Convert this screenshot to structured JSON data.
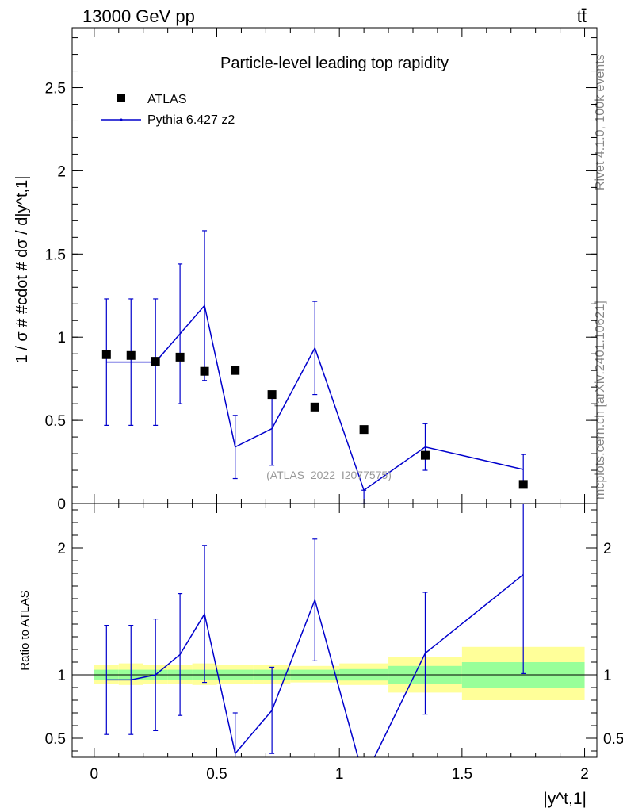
{
  "header": {
    "left": "13000 GeV pp",
    "right": "tt̄"
  },
  "side_labels": {
    "rivet": "Rivet 4.1.0,  100k events",
    "mcplots": "mcplots.cern.ch [arXiv:2401.10621]"
  },
  "colors": {
    "data": "#000000",
    "mc": "#0000cc",
    "band_outer": "#ffff99",
    "band_inner": "#99ff99",
    "watermark": "#999999"
  },
  "chart_data": [
    {
      "type": "scatter",
      "panel": "main",
      "title": "Particle-level leading top rapidity",
      "watermark": "(ATLAS_2022_I2077575)",
      "xlabel": "|y^t,1|",
      "ylabel": "1 / σ # #cdot # dσ / d|y^t,1|",
      "xlim": [
        -0.09,
        2.05
      ],
      "ylim": [
        0,
        2.86
      ],
      "yticks": [
        0,
        0.5,
        1,
        1.5,
        2,
        2.5
      ],
      "ytick_labels": [
        "0",
        "0.5",
        "1",
        "1.5",
        "2",
        "2.5"
      ],
      "legend": {
        "position": "top-left",
        "entries": [
          "ATLAS",
          "Pythia 6.427 z2"
        ]
      },
      "series": [
        {
          "name": "ATLAS",
          "style": "markers",
          "x": [
            0.05,
            0.15,
            0.25,
            0.35,
            0.45,
            0.575,
            0.725,
            0.9,
            1.1,
            1.35,
            1.75
          ],
          "y": [
            0.895,
            0.89,
            0.855,
            0.88,
            0.795,
            0.8,
            0.655,
            0.58,
            0.445,
            0.29,
            0.115
          ]
        },
        {
          "name": "Pythia 6.427 z2",
          "style": "line",
          "x": [
            0.05,
            0.15,
            0.25,
            0.35,
            0.45,
            0.575,
            0.725,
            0.9,
            1.1,
            1.35,
            1.75
          ],
          "y": [
            0.85,
            0.85,
            0.85,
            1.02,
            1.19,
            0.34,
            0.45,
            0.935,
            0.08,
            0.34,
            0.205
          ],
          "yerr_low": [
            0.38,
            0.38,
            0.38,
            0.42,
            0.45,
            0.19,
            0.22,
            0.28,
            0.08,
            0.14,
            0.09
          ],
          "yerr_high": [
            0.38,
            0.38,
            0.38,
            0.42,
            0.45,
            0.19,
            0.22,
            0.28,
            0.0,
            0.14,
            0.09
          ]
        }
      ]
    },
    {
      "type": "line",
      "panel": "ratio",
      "xlabel": "|y^t,1|",
      "ylabel": "Ratio to ATLAS",
      "xlim": [
        -0.09,
        2.05
      ],
      "ylim": [
        0.35,
        2.35
      ],
      "xticks": [
        0,
        0.5,
        1,
        1.5,
        2
      ],
      "xtick_labels": [
        "0",
        "0.5",
        "1",
        "1.5",
        "2"
      ],
      "yticks": [
        0.5,
        1,
        2
      ],
      "ytick_labels": [
        "0.5",
        "1",
        "2"
      ],
      "reference_line": 1,
      "bands": {
        "edges": [
          0,
          0.1,
          0.2,
          0.3,
          0.4,
          0.5,
          0.65,
          0.8,
          1.0,
          1.2,
          1.5,
          2.0
        ],
        "inner_low": [
          0.96,
          0.96,
          0.96,
          0.96,
          0.96,
          0.96,
          0.96,
          0.96,
          0.955,
          0.93,
          0.9
        ],
        "inner_high": [
          1.04,
          1.04,
          1.04,
          1.04,
          1.04,
          1.04,
          1.04,
          1.04,
          1.045,
          1.07,
          1.1
        ],
        "outer_low": [
          0.93,
          0.92,
          0.93,
          0.93,
          0.92,
          0.93,
          0.93,
          0.94,
          0.92,
          0.86,
          0.8
        ],
        "outer_high": [
          1.08,
          1.09,
          1.08,
          1.08,
          1.09,
          1.08,
          1.08,
          1.07,
          1.09,
          1.14,
          1.22
        ]
      },
      "series": [
        {
          "name": "Pythia 6.427 z2 / ATLAS",
          "x": [
            0.05,
            0.15,
            0.25,
            0.35,
            0.45,
            0.575,
            0.725,
            0.9,
            1.1,
            1.35,
            1.75
          ],
          "y": [
            0.96,
            0.96,
            1.0,
            1.16,
            1.48,
            0.38,
            0.72,
            1.59,
            0.18,
            1.17,
            1.79
          ],
          "yerr_low": [
            0.43,
            0.43,
            0.44,
            0.48,
            0.54,
            0.24,
            0.34,
            0.48,
            0.18,
            0.48,
            0.78
          ],
          "yerr_high": [
            0.43,
            0.43,
            0.44,
            0.48,
            0.54,
            0.32,
            0.34,
            0.48,
            0.0,
            0.48,
            0.78
          ]
        }
      ]
    }
  ]
}
